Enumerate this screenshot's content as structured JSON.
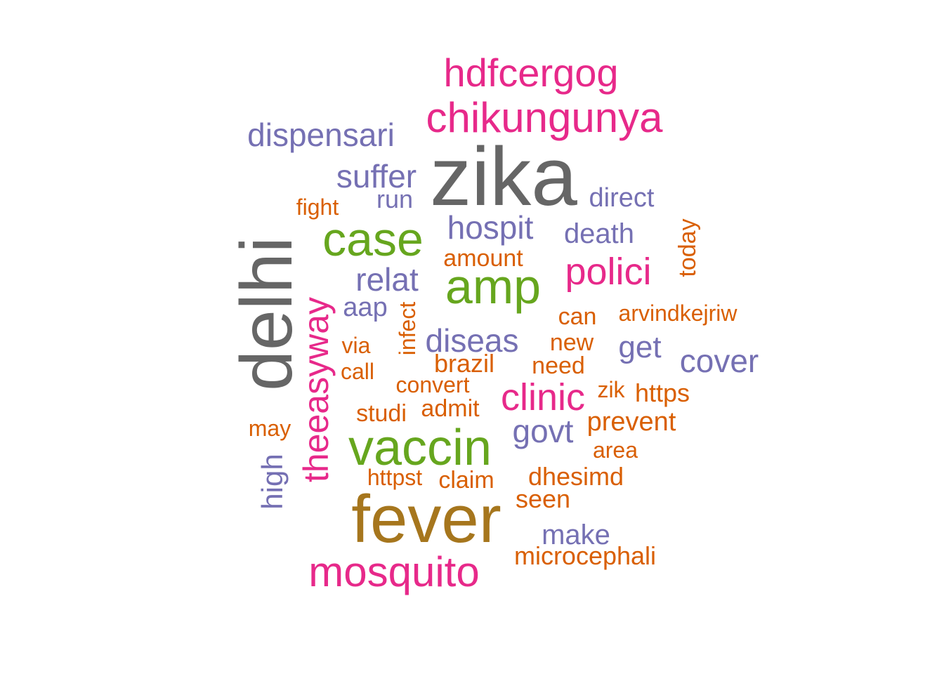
{
  "wordcloud": {
    "palette": {
      "gray": "#666666",
      "gold": "#A6761D",
      "green": "#66A61E",
      "magenta": "#E7298A",
      "purple": "#7570B3",
      "orange": "#D95F02"
    },
    "words": [
      {
        "text": "zika",
        "color": "gray"
      },
      {
        "text": "delhi",
        "color": "gray"
      },
      {
        "text": "fever",
        "color": "gold"
      },
      {
        "text": "vaccin",
        "color": "green"
      },
      {
        "text": "amp",
        "color": "green"
      },
      {
        "text": "case",
        "color": "green"
      },
      {
        "text": "mosquito",
        "color": "magenta"
      },
      {
        "text": "chikungunya",
        "color": "magenta"
      },
      {
        "text": "hdfcergog",
        "color": "magenta"
      },
      {
        "text": "theeasyway",
        "color": "magenta"
      },
      {
        "text": "polici",
        "color": "magenta"
      },
      {
        "text": "clinic",
        "color": "magenta"
      },
      {
        "text": "dispensari",
        "color": "purple"
      },
      {
        "text": "suffer",
        "color": "purple"
      },
      {
        "text": "hospit",
        "color": "purple"
      },
      {
        "text": "relat",
        "color": "purple"
      },
      {
        "text": "diseas",
        "color": "purple"
      },
      {
        "text": "cover",
        "color": "purple"
      },
      {
        "text": "govt",
        "color": "purple"
      },
      {
        "text": "death",
        "color": "purple"
      },
      {
        "text": "get",
        "color": "purple"
      },
      {
        "text": "direct",
        "color": "purple"
      },
      {
        "text": "make",
        "color": "purple"
      },
      {
        "text": "high",
        "color": "purple"
      },
      {
        "text": "aap",
        "color": "purple"
      },
      {
        "text": "run",
        "color": "purple"
      },
      {
        "text": "fight",
        "color": "orange"
      },
      {
        "text": "amount",
        "color": "orange"
      },
      {
        "text": "today",
        "color": "orange"
      },
      {
        "text": "can",
        "color": "orange"
      },
      {
        "text": "arvindkejriw",
        "color": "orange"
      },
      {
        "text": "infect",
        "color": "orange"
      },
      {
        "text": "via",
        "color": "orange"
      },
      {
        "text": "new",
        "color": "orange"
      },
      {
        "text": "call",
        "color": "orange"
      },
      {
        "text": "brazil",
        "color": "orange"
      },
      {
        "text": "need",
        "color": "orange"
      },
      {
        "text": "convert",
        "color": "orange"
      },
      {
        "text": "zik",
        "color": "orange"
      },
      {
        "text": "https",
        "color": "orange"
      },
      {
        "text": "studi",
        "color": "orange"
      },
      {
        "text": "admit",
        "color": "orange"
      },
      {
        "text": "may",
        "color": "orange"
      },
      {
        "text": "prevent",
        "color": "orange"
      },
      {
        "text": "area",
        "color": "orange"
      },
      {
        "text": "httpst",
        "color": "orange"
      },
      {
        "text": "claim",
        "color": "orange"
      },
      {
        "text": "dhesimd",
        "color": "orange"
      },
      {
        "text": "seen",
        "color": "orange"
      },
      {
        "text": "microcephali",
        "color": "orange"
      }
    ]
  }
}
